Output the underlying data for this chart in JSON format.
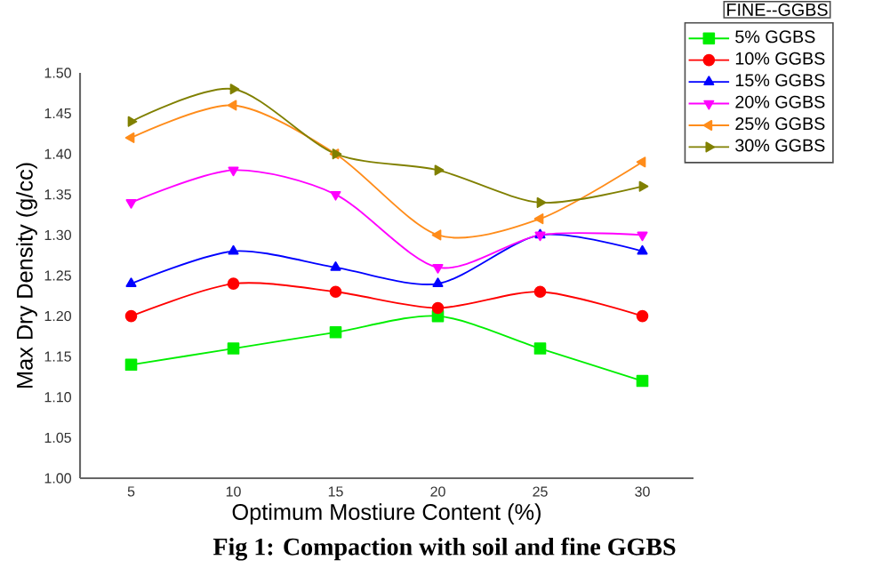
{
  "chart_data": {
    "type": "line",
    "xlabel": "Optimum Mostiure Content (%)",
    "ylabel": "Max Dry Density (g/cc)",
    "legend_title": "FINE--GGBS",
    "annotations": [
      "Fig 1: Compaction with soil and fine GGBS"
    ],
    "x": [
      5,
      10,
      15,
      20,
      25,
      30
    ],
    "xlim": [
      2.5,
      32.5
    ],
    "xticks": [
      5,
      10,
      15,
      20,
      25,
      30
    ],
    "ylim": [
      1.0,
      1.5
    ],
    "yticks": [
      {
        "value": 1.0,
        "label": "1.00"
      },
      1.05,
      {
        "value": 1.1,
        "label": "1.10"
      },
      1.15,
      {
        "value": 1.2,
        "label": "1.20"
      },
      1.25,
      {
        "value": 1.3,
        "label": "1.30"
      },
      1.35,
      {
        "value": 1.4,
        "label": "1.40"
      },
      1.45,
      {
        "value": 1.5,
        "label": "1.50"
      }
    ],
    "legend": "top right",
    "grid": false,
    "series": [
      {
        "name": "5% GGBS",
        "color": "#00ee00",
        "marker": "square",
        "values": [
          1.14,
          1.16,
          1.18,
          1.2,
          1.16,
          1.12
        ]
      },
      {
        "name": "10% GGBS",
        "color": "#ff0000",
        "marker": "circle",
        "values": [
          1.2,
          1.24,
          1.23,
          1.21,
          1.23,
          1.2
        ]
      },
      {
        "name": "15% GGBS",
        "color": "#0000ff",
        "marker": "triangle",
        "values": [
          1.24,
          1.28,
          1.26,
          1.24,
          1.3,
          1.28
        ]
      },
      {
        "name": "20% GGBS",
        "color": "#ff00ff",
        "marker": "triangle-down",
        "values": [
          1.34,
          1.38,
          1.35,
          1.26,
          1.3,
          1.3
        ]
      },
      {
        "name": "25% GGBS",
        "color": "#ff8c1a",
        "marker": "triangle-left",
        "values": [
          1.42,
          1.46,
          1.4,
          1.3,
          1.32,
          1.39
        ]
      },
      {
        "name": "30% GGBS",
        "color": "#808000",
        "marker": "triangle-right",
        "values": [
          1.44,
          1.48,
          1.4,
          1.38,
          1.34,
          1.36
        ]
      }
    ]
  }
}
